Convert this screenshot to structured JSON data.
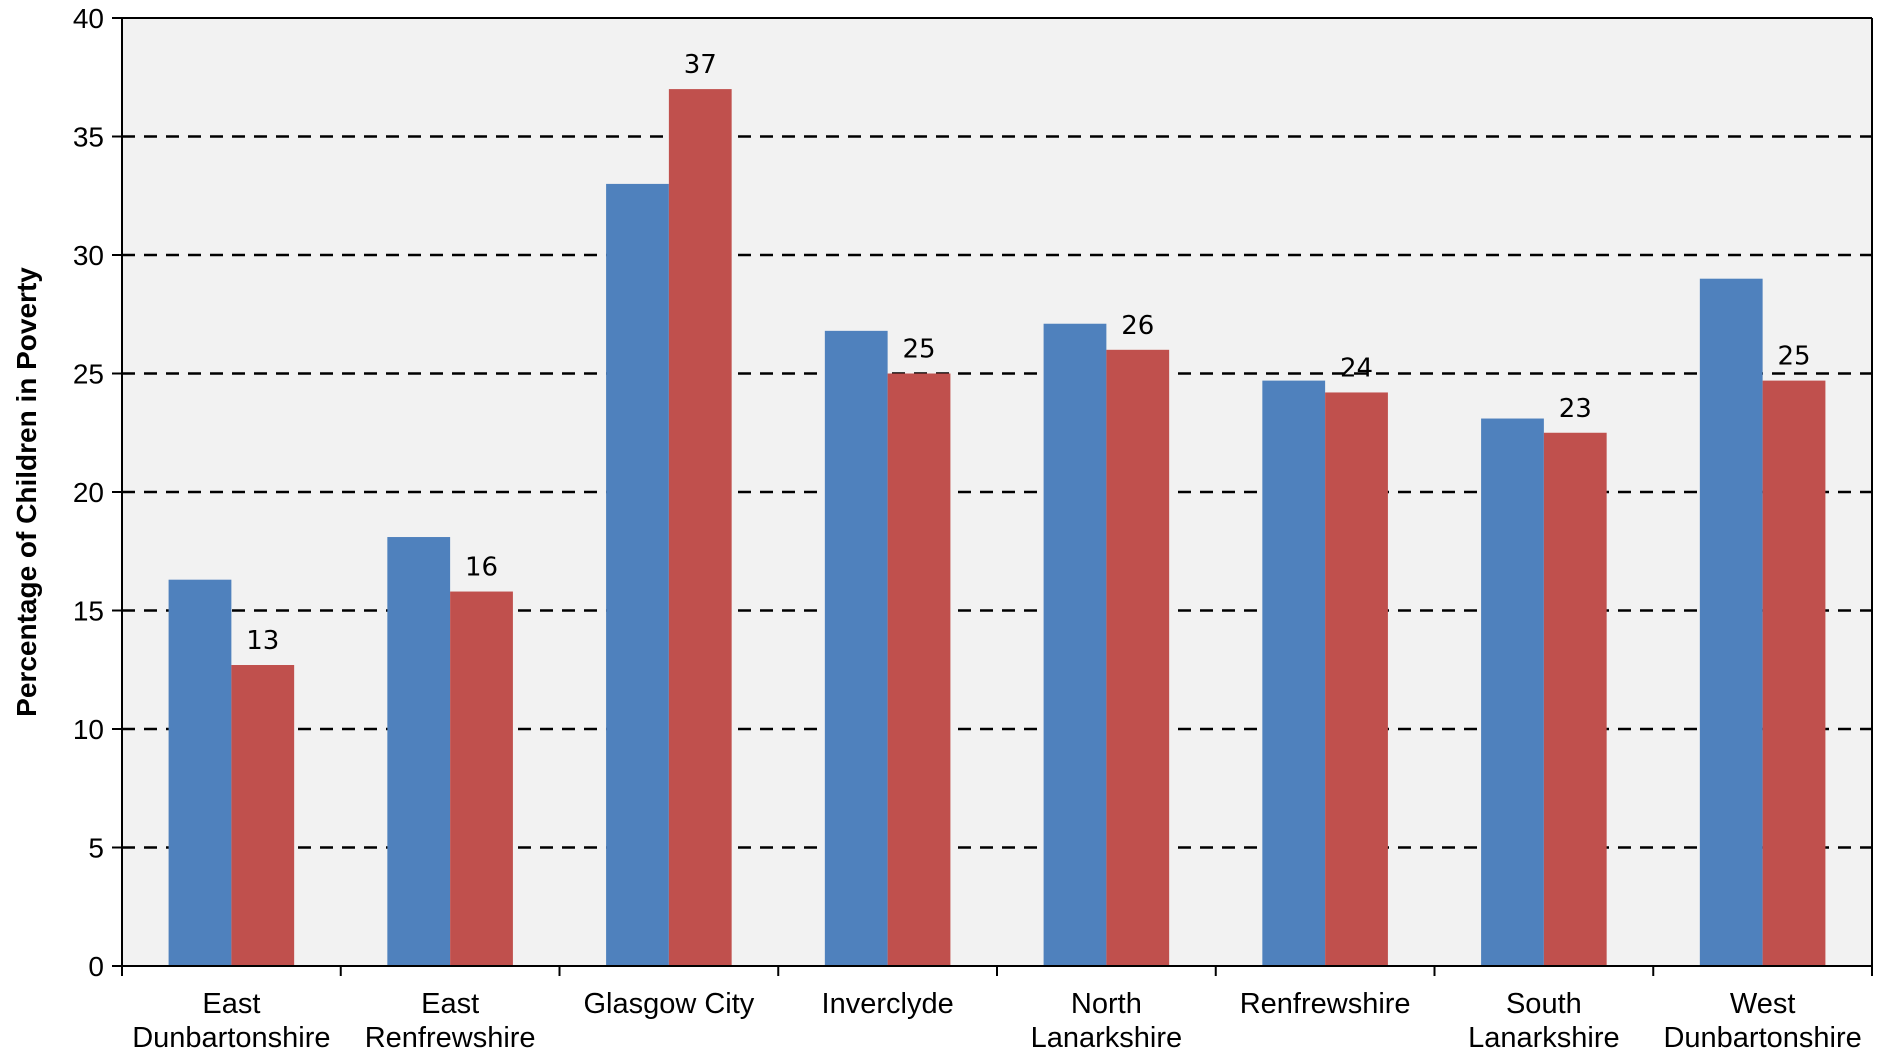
{
  "chart_data": {
    "type": "bar",
    "ylabel": "Percentage of Children in Poverty",
    "xlabel": "",
    "ylim": [
      0,
      40
    ],
    "yticks": [
      0,
      5,
      10,
      15,
      20,
      25,
      30,
      35,
      40
    ],
    "grid": "horizontal dashed",
    "categories": [
      [
        "East",
        "Dunbartonshire"
      ],
      [
        "East",
        "Renfrewshire"
      ],
      [
        "Glasgow City"
      ],
      [
        "Inverclyde"
      ],
      [
        "North",
        "Lanarkshire"
      ],
      [
        "Renfrewshire"
      ],
      [
        "South",
        "Lanarkshire"
      ],
      [
        "West",
        "Dunbartonshire"
      ]
    ],
    "series": [
      {
        "color": "#4F81BD",
        "values": [
          16.3,
          18.1,
          33.0,
          26.8,
          27.1,
          24.7,
          23.1,
          29.0
        ],
        "labels": []
      },
      {
        "color": "#C0504D",
        "values": [
          12.7,
          15.8,
          37.0,
          25.0,
          26.0,
          24.2,
          22.5,
          24.7
        ],
        "labels": [
          "13",
          "16",
          "37",
          "25",
          "26",
          "24",
          "23",
          "25"
        ]
      }
    ]
  }
}
